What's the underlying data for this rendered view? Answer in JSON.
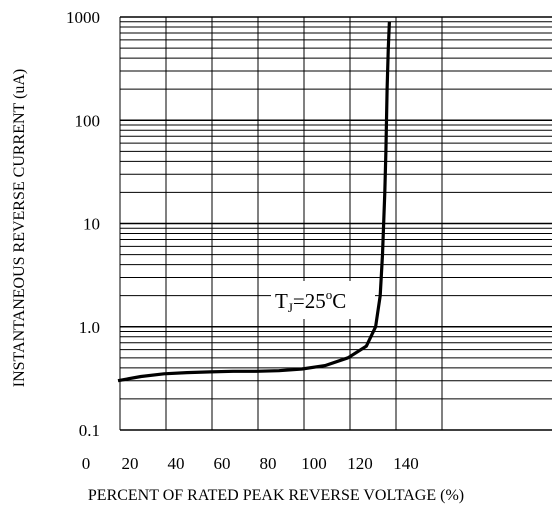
{
  "chart_data": {
    "type": "line",
    "title": "",
    "xlabel": "PERCENT OF RATED PEAK REVERSE VOLTAGE (%)",
    "ylabel": "INSTANTANEOUS REVERSE CURRENT (uA)",
    "xlim": [
      0,
      170
    ],
    "ylim": [
      0.1,
      1000
    ],
    "y_scale": "log",
    "x_ticks": [
      0,
      20,
      40,
      60,
      80,
      100,
      120,
      140
    ],
    "x_tick_labels": [
      "0",
      "20",
      "40",
      "60",
      "80",
      "100",
      "120",
      "140"
    ],
    "y_ticks": [
      1000,
      100,
      10,
      1,
      0.1
    ],
    "y_tick_labels": [
      "1000",
      "100",
      "10",
      "1.0",
      "0.1"
    ],
    "grid": true,
    "annotation": {
      "T": "T",
      "sub": "J",
      "eq": "=25",
      "sup": "o",
      "unit": "C"
    },
    "series": [
      {
        "x": [
          20,
          30,
          40,
          50,
          60,
          70,
          80,
          90,
          100,
          110,
          120,
          128,
          132,
          134,
          135,
          136,
          136.5,
          137,
          137.5,
          138
        ],
        "y": [
          0.3,
          0.33,
          0.35,
          0.36,
          0.365,
          0.37,
          0.37,
          0.375,
          0.39,
          0.42,
          0.5,
          0.65,
          1.0,
          2.0,
          5.0,
          20,
          50,
          200,
          500,
          900
        ]
      }
    ]
  }
}
